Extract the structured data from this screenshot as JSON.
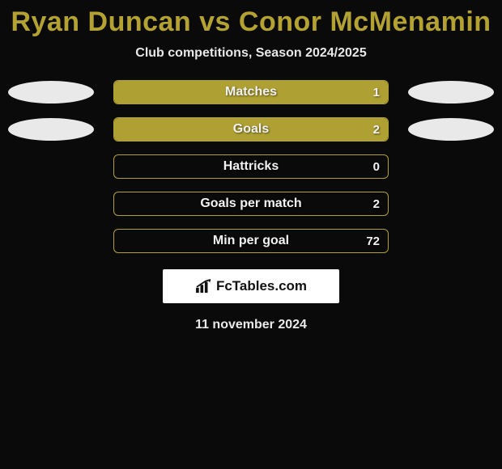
{
  "title": "Ryan Duncan vs Conor McMenamin",
  "subtitle": "Club competitions, Season 2024/2025",
  "date": "11 november 2024",
  "watermark_text": "FcTables.com",
  "colors": {
    "title": "#b3a232",
    "bar_fill": "#afa034",
    "bar_border": "#afa034",
    "ellipse": "#e9e9e9",
    "background": "#0a0a0a",
    "text_light": "#f2f2f2"
  },
  "bar_container_width": 340,
  "stats": [
    {
      "label": "Matches",
      "value": "1",
      "fill_left_pct": 0,
      "fill_right_pct": 100,
      "show_ellipses": true
    },
    {
      "label": "Goals",
      "value": "2",
      "fill_left_pct": 0,
      "fill_right_pct": 100,
      "show_ellipses": true
    },
    {
      "label": "Hattricks",
      "value": "0",
      "fill_left_pct": 0,
      "fill_right_pct": 0,
      "show_ellipses": false
    },
    {
      "label": "Goals per match",
      "value": "2",
      "fill_left_pct": 0,
      "fill_right_pct": 0,
      "show_ellipses": false
    },
    {
      "label": "Min per goal",
      "value": "72",
      "fill_left_pct": 0,
      "fill_right_pct": 0,
      "show_ellipses": false
    }
  ]
}
